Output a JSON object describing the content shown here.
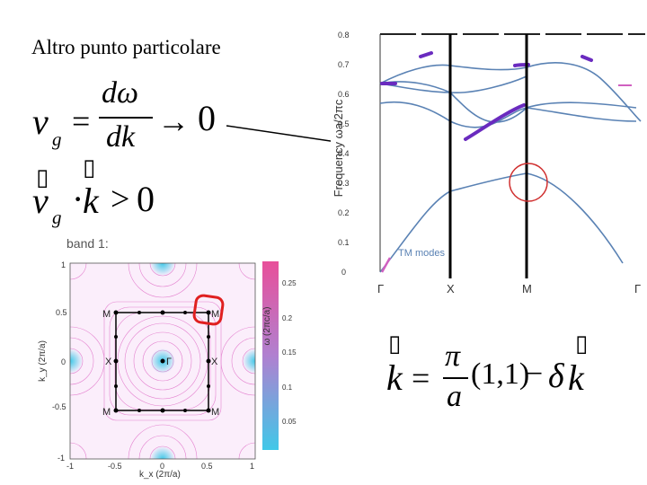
{
  "slide": {
    "title": "Altro punto particolare"
  },
  "formula_vg": {
    "v": "v",
    "sub_g": "g",
    "equals": "=",
    "numerator": "dω",
    "denominator": "dk",
    "arrow": "→",
    "zero": "0"
  },
  "formula_dot": {
    "v": "v",
    "sub_g": "g",
    "dot": "·",
    "k": "k",
    "gt": ">",
    "zero": "0",
    "placeholder_glyph": "▯"
  },
  "formula_k": {
    "k": "k",
    "equals": "=",
    "pi": "π",
    "a": "a",
    "vector": "(1,1)",
    "minus": "−",
    "delta": "δ",
    "k2": "k",
    "placeholder_glyph": "▯"
  },
  "band_diagram": {
    "ylabel": "Frequency ωa/2πc",
    "y_ticks": [
      "0.8",
      "0.7",
      "0.6",
      "0.5",
      "0.4",
      "0.3",
      "0.2",
      "0.1",
      "0"
    ],
    "x_ticks": [
      "Γ",
      "X",
      "M",
      "Γ"
    ],
    "legend": "TM modes",
    "colors": {
      "band": "#5a82b4",
      "highlight": "#6a2bbf",
      "circle": "#d03030",
      "pink": "#d060c0"
    }
  },
  "contour_plot": {
    "title": "band 1:",
    "ylabel": "k_y (2π/a)",
    "xlabel": "k_x (2π/a)",
    "y_ticks": [
      "1",
      "0.5",
      "0",
      "-0.5",
      "-1"
    ],
    "x_ticks": [
      "-1",
      "-0.5",
      "0",
      "0.5",
      "1"
    ],
    "point_labels": {
      "M": "M",
      "X": "X",
      "Gamma": "Γ"
    },
    "colorbar_label": "ω (2πc/a)",
    "colorbar_ticks": [
      "0.25",
      "0.2",
      "0.15",
      "0.1",
      "0.05"
    ],
    "colors": {
      "low": "#40c8e8",
      "high": "#e8509a",
      "marker": "#e02020"
    }
  }
}
